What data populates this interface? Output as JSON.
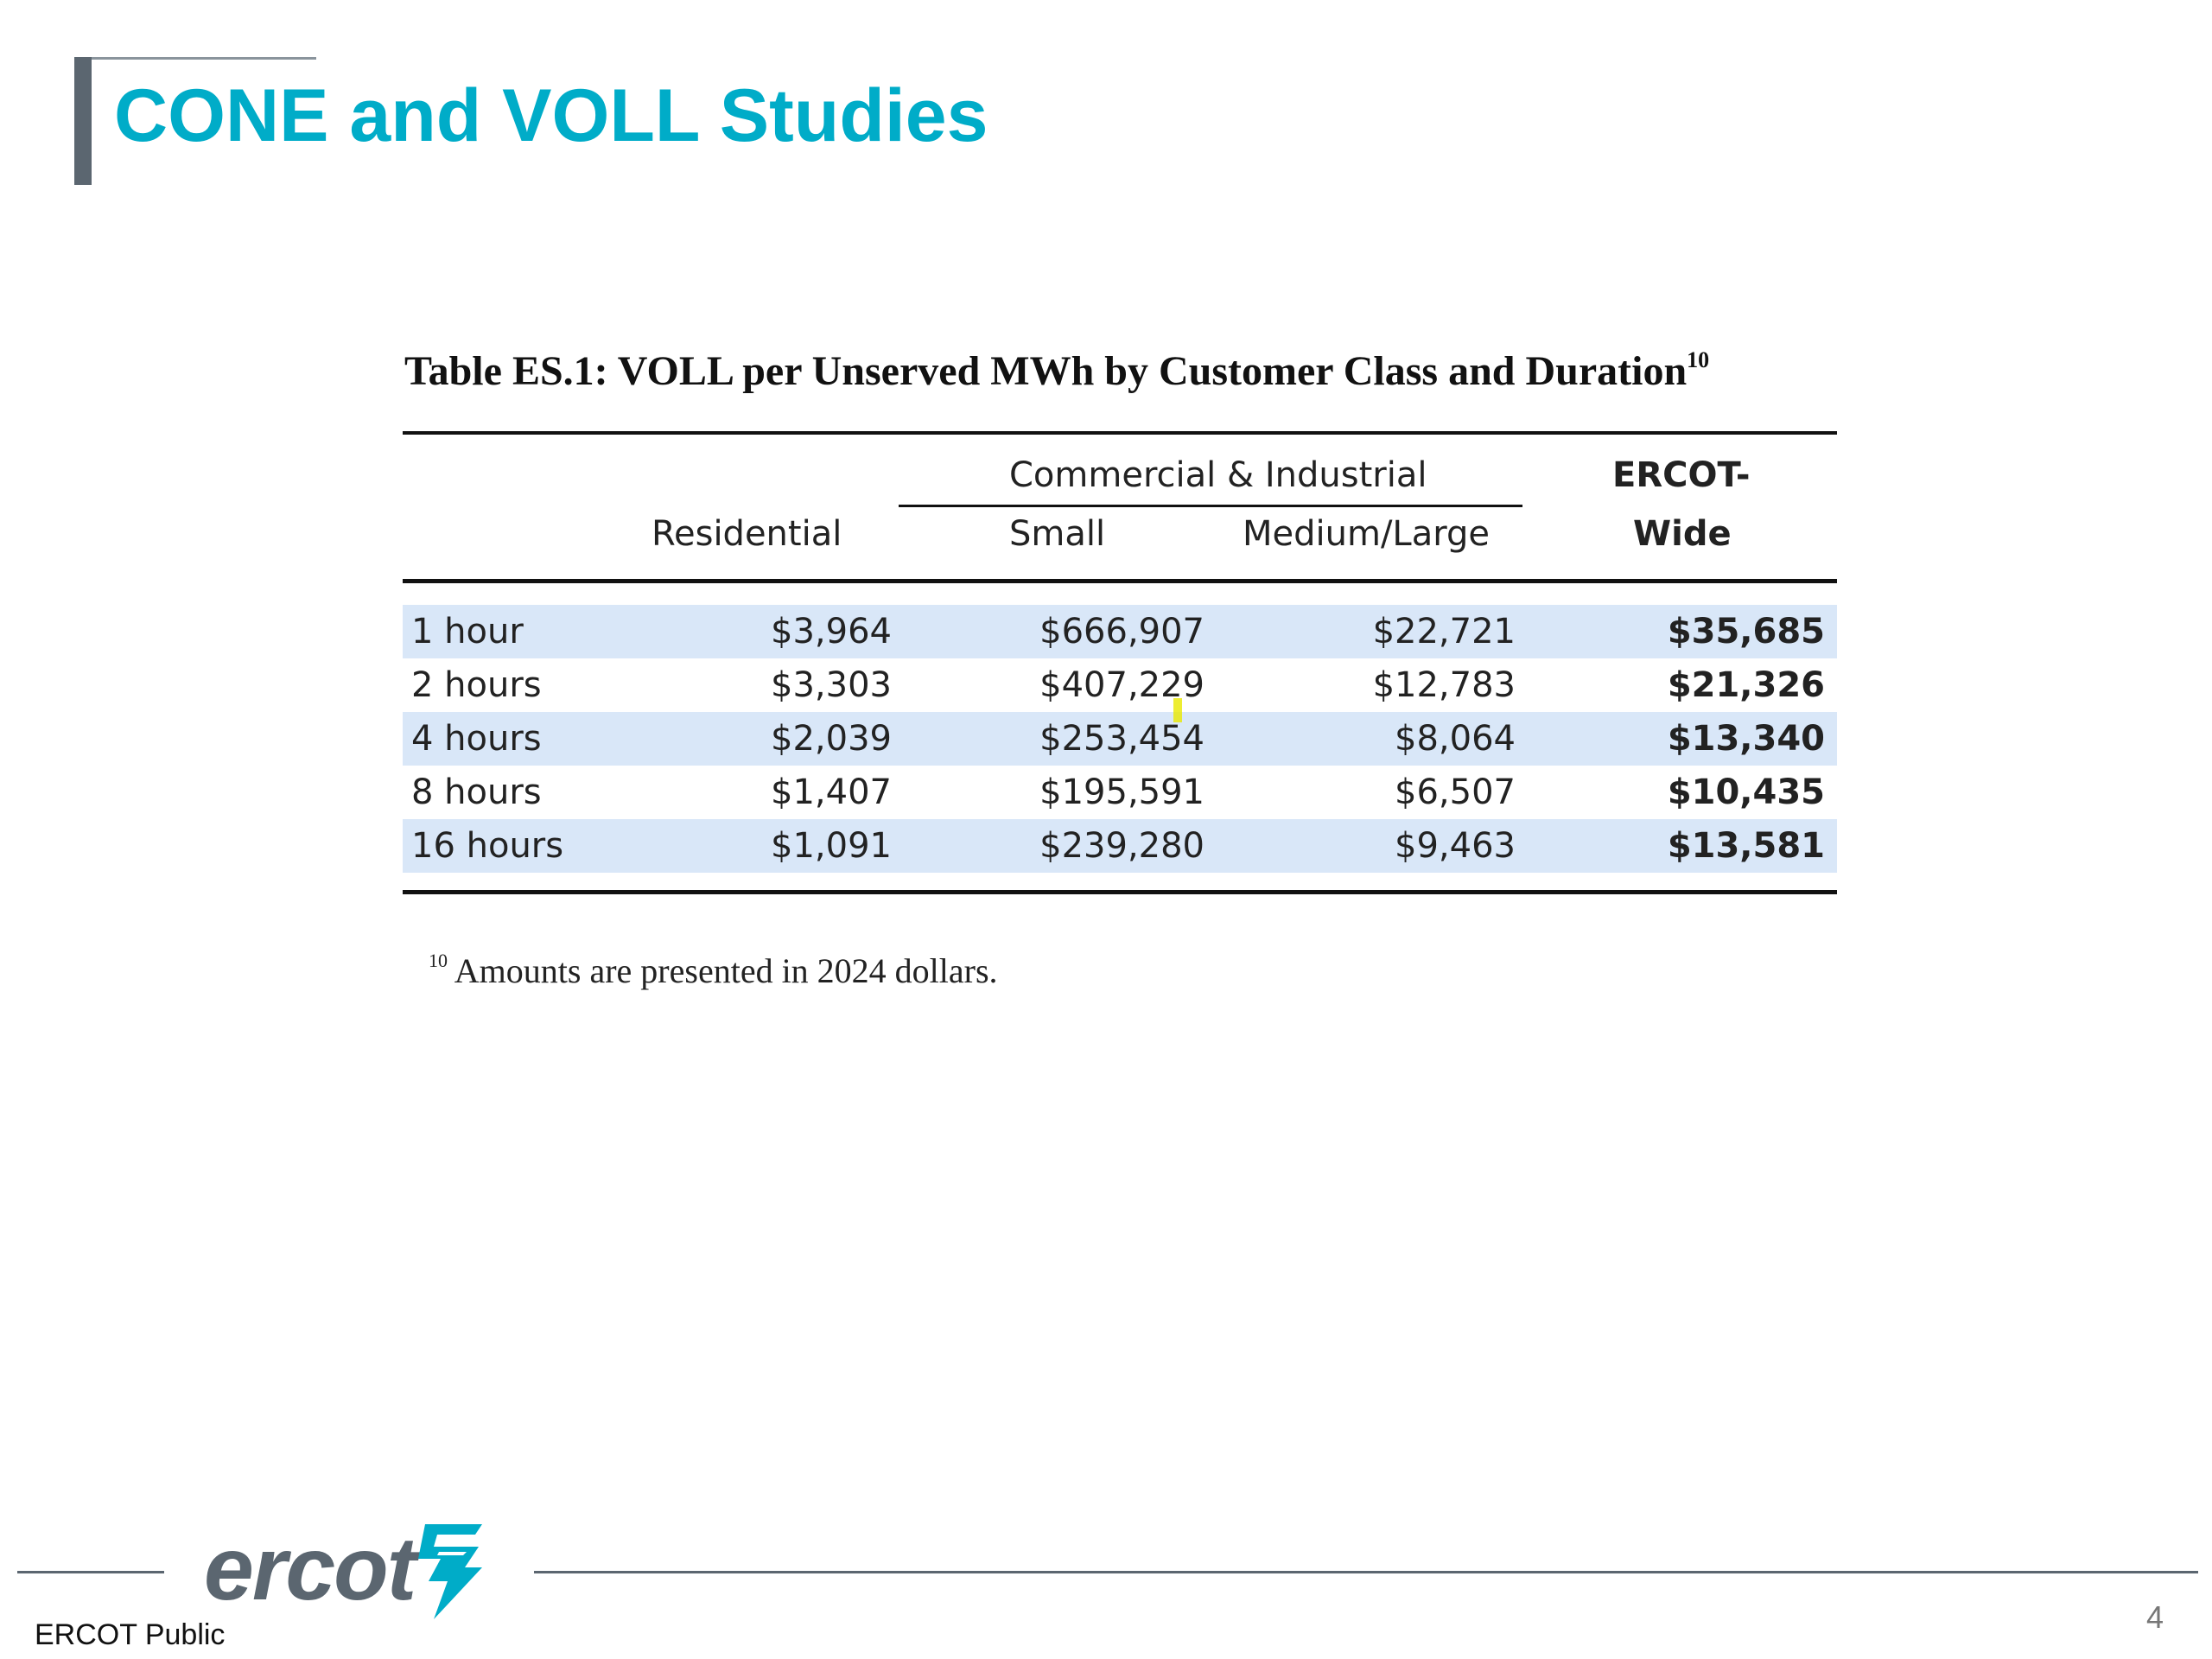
{
  "slide": {
    "title": "CONE and VOLL Studies",
    "page_number": "4"
  },
  "table": {
    "caption": "Table ES.1: VOLL per Unserved MWh by Customer Class and Duration",
    "caption_footnote_ref": "10",
    "group_header": "Commercial & Industrial",
    "headers": {
      "residential": "Residential",
      "small": "Small",
      "medium_large": "Medium/Large",
      "ercot_wide_line1": "ERCOT-",
      "ercot_wide_line2": "Wide"
    },
    "rows": [
      {
        "duration": "1 hour",
        "residential": "$3,964",
        "small": "$666,907",
        "medium_large": "$22,721",
        "ercot_wide": "$35,685"
      },
      {
        "duration": "2 hours",
        "residential": "$3,303",
        "small": "$407,229",
        "medium_large": "$12,783",
        "ercot_wide": "$21,326"
      },
      {
        "duration": "4 hours",
        "residential": "$2,039",
        "small": "$253,454",
        "medium_large": "$8,064",
        "ercot_wide": "$13,340"
      },
      {
        "duration": "8 hours",
        "residential": "$1,407",
        "small": "$195,591",
        "medium_large": "$6,507",
        "ercot_wide": "$10,435"
      },
      {
        "duration": "16 hours",
        "residential": "$1,091",
        "small": "$239,280",
        "medium_large": "$9,463",
        "ercot_wide": "$13,581"
      }
    ],
    "footnote_ref": "10",
    "footnote": "Amounts are presented in 2024 dollars."
  },
  "footer": {
    "logo_text": "ercot",
    "classification": "ERCOT Public"
  },
  "colors": {
    "title": "#00acc8",
    "accent_bar": "#5b6670",
    "row_shade": "#d9e7f8"
  }
}
